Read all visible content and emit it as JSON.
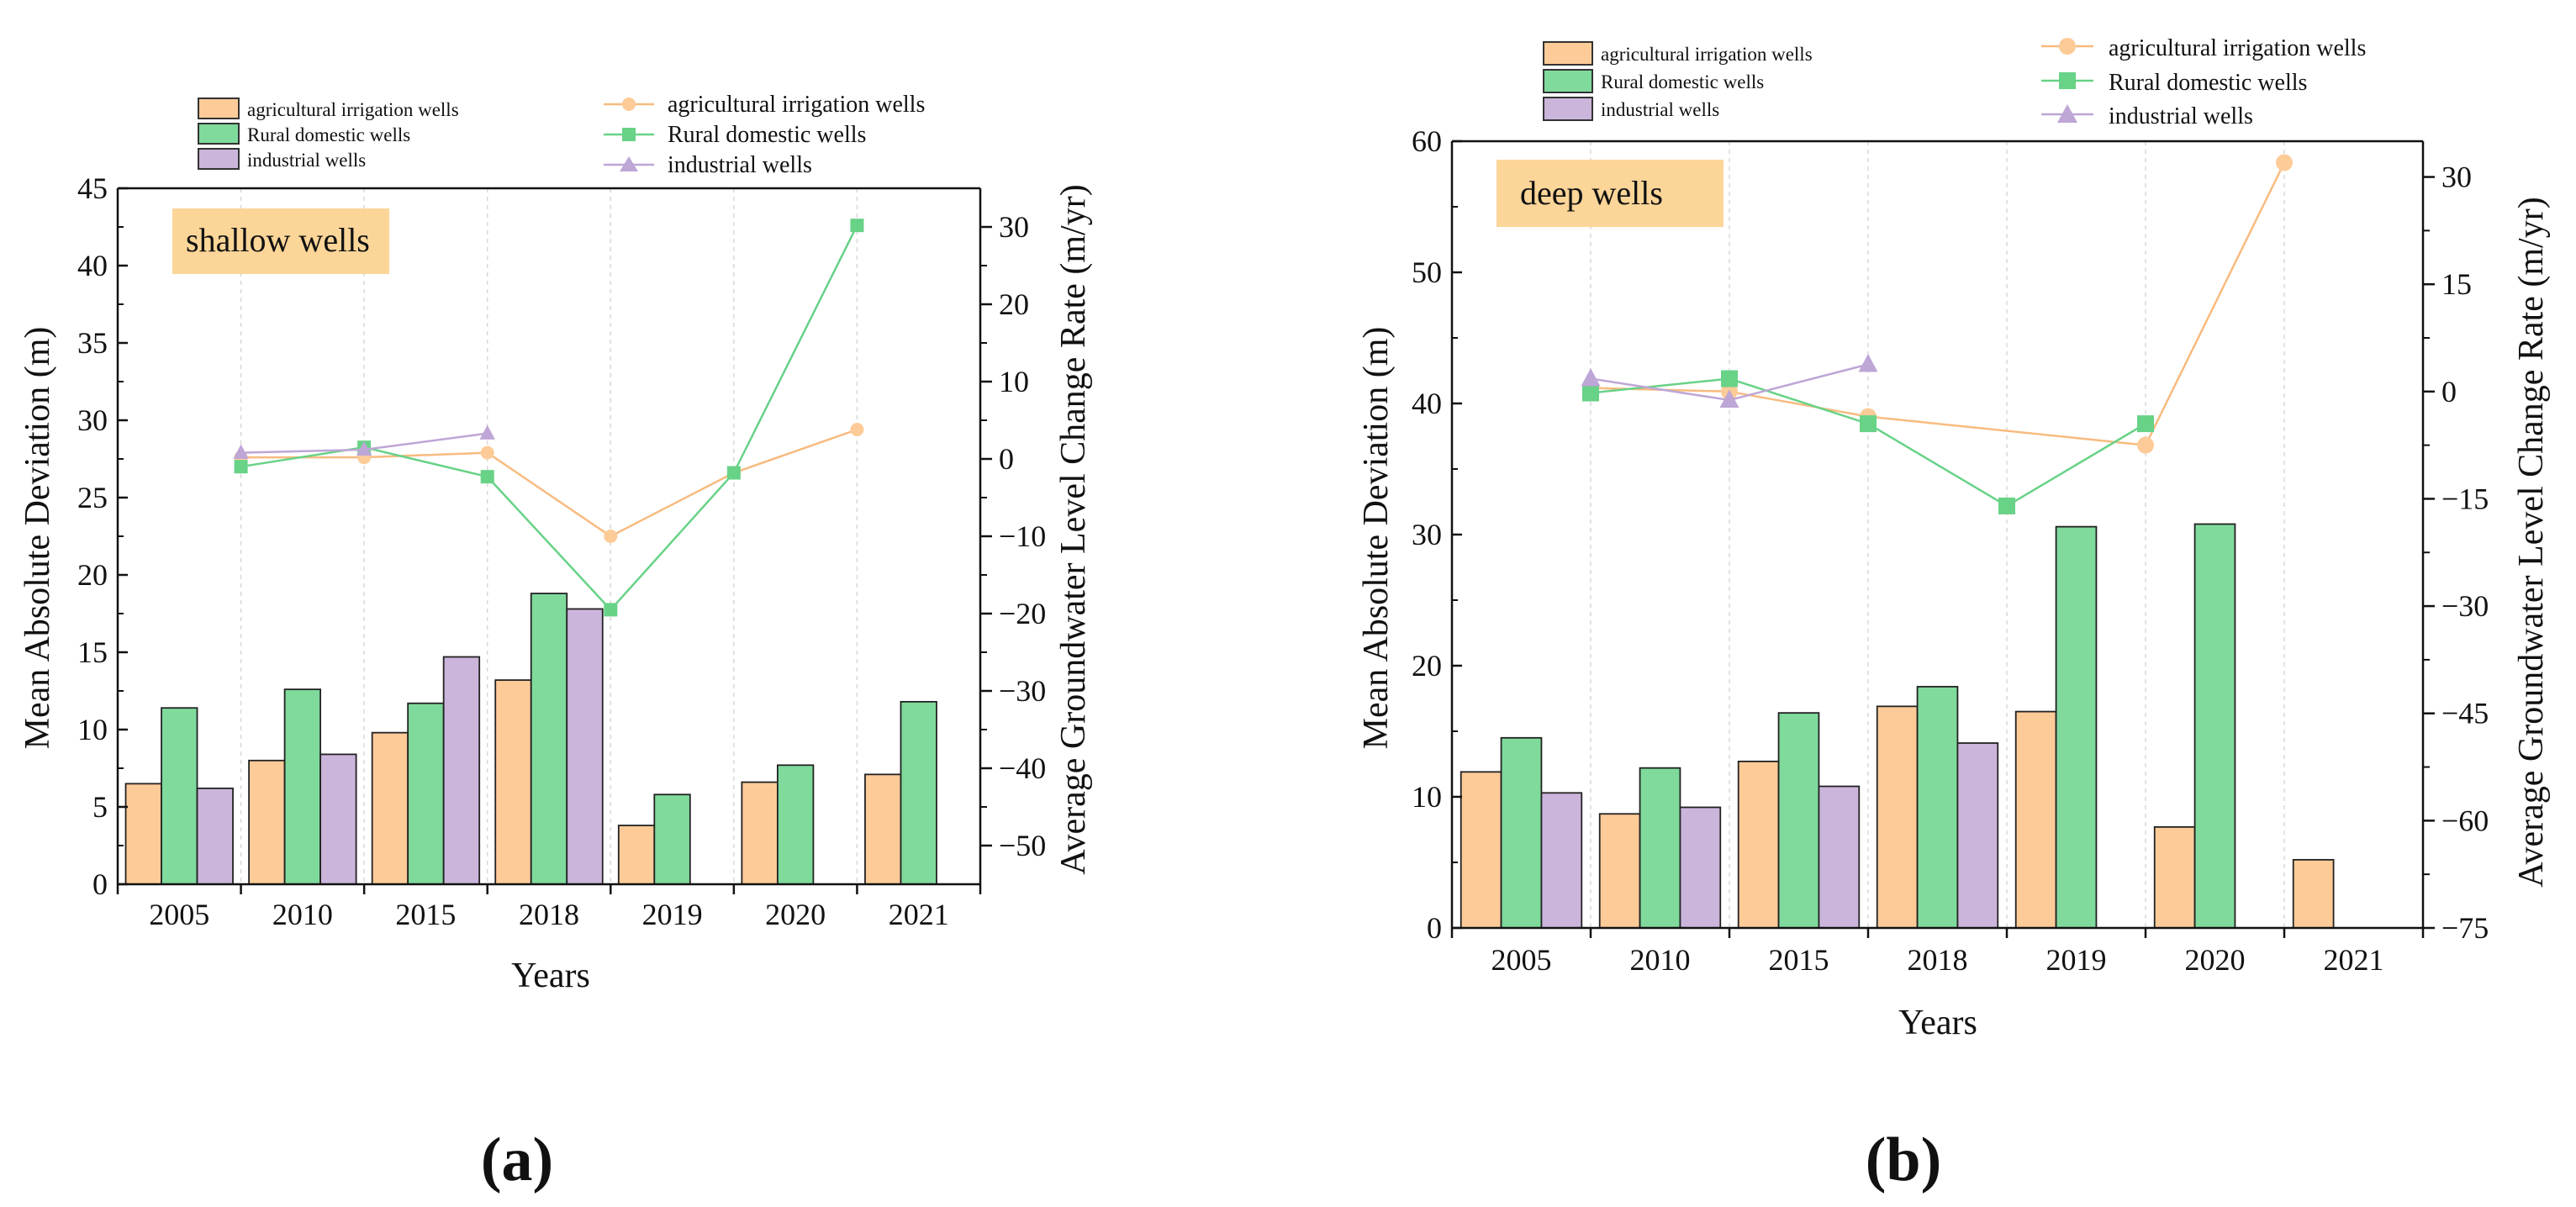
{
  "colors": {
    "agri": "#fdcb98",
    "rural": "#7fda9c",
    "industrial": "#cbb5db",
    "agri_line": "#f8bb7f",
    "rural_line": "#68d287",
    "industrial_line": "#bea6d6",
    "label_box": "#fcd598",
    "axis": "#111111"
  },
  "chart_data": [
    {
      "type": "bar+line",
      "panel_label": "(a)",
      "title": "shallow wells",
      "xlabel": "Years",
      "ylabel": "Mean Absolute Deviation (m)",
      "y2label": "Average Groundwater Level Change Rate (m/yr)",
      "categories": [
        "2005",
        "2010",
        "2015",
        "2018",
        "2019",
        "2020",
        "2021"
      ],
      "ylim": [
        0,
        45
      ],
      "yticks": [
        "0",
        "5",
        "10",
        "15",
        "20",
        "25",
        "30",
        "35",
        "40",
        "45"
      ],
      "y2lim": [
        -55,
        35
      ],
      "y2ticks": [
        "−50",
        "−40",
        "−30",
        "−20",
        "−10",
        "0",
        "10",
        "20",
        "30"
      ],
      "legend_bars": [
        "agricultural irrigation wells",
        "Rural domestic wells",
        "industrial wells"
      ],
      "legend_lines": [
        "agricultural irrigation wells",
        "Rural domestic wells",
        "industrial wells"
      ],
      "bar_series": [
        {
          "name": "agricultural irrigation wells",
          "values": [
            6.5,
            8.0,
            9.8,
            13.2,
            3.8,
            6.6,
            7.1
          ]
        },
        {
          "name": "Rural domestic wells",
          "values": [
            11.4,
            12.6,
            11.7,
            18.8,
            5.8,
            7.7,
            11.8
          ]
        },
        {
          "name": "industrial wells",
          "values": [
            6.2,
            8.4,
            14.7,
            17.8,
            null,
            null,
            null
          ]
        }
      ],
      "line_series": [
        {
          "name": "agricultural irrigation wells",
          "values": [
            0.2,
            0.2,
            0.8,
            -10.0,
            -1.8,
            3.8
          ]
        },
        {
          "name": "Rural domestic wells",
          "values": [
            -1.0,
            1.5,
            -2.3,
            -19.5,
            -1.8,
            30.2
          ]
        },
        {
          "name": "industrial wells",
          "values": [
            0.8,
            1.2,
            3.3,
            null,
            null,
            null
          ]
        }
      ]
    },
    {
      "type": "bar+line",
      "panel_label": "(b)",
      "title": "deep wells",
      "xlabel": "Years",
      "ylabel": "Mean Absolute Deviation (m)",
      "y2label": "Average Groundwater Level Change Rate (m/yr)",
      "categories": [
        "2005",
        "2010",
        "2015",
        "2018",
        "2019",
        "2020",
        "2021"
      ],
      "ylim": [
        0,
        60
      ],
      "yticks": [
        "0",
        "10",
        "20",
        "30",
        "40",
        "50",
        "60"
      ],
      "y2lim": [
        -75,
        35
      ],
      "y2ticks": [
        "−75",
        "−60",
        "−45",
        "−30",
        "−15",
        "0",
        "15",
        "30"
      ],
      "legend_bars": [
        "agricultural irrigation wells",
        "Rural domestic wells",
        "industrial wells"
      ],
      "legend_lines": [
        "agricultural irrigation wells",
        "Rural domestic wells",
        "industrial wells"
      ],
      "bar_series": [
        {
          "name": "agricultural irrigation wells",
          "values": [
            11.9,
            8.7,
            12.7,
            16.9,
            16.5,
            7.7,
            5.2
          ]
        },
        {
          "name": "Rural domestic wells",
          "values": [
            14.5,
            12.2,
            16.4,
            18.4,
            30.6,
            30.8,
            null
          ]
        },
        {
          "name": "industrial wells",
          "values": [
            10.3,
            9.2,
            10.8,
            14.1,
            null,
            null,
            null
          ]
        }
      ],
      "line_series": [
        {
          "name": "agricultural irrigation wells",
          "values": [
            0.5,
            0.0,
            -3.5,
            null,
            -7.5,
            32.0
          ]
        },
        {
          "name": "Rural domestic wells",
          "values": [
            -0.2,
            1.8,
            -4.5,
            -16.0,
            -4.5,
            null
          ]
        },
        {
          "name": "industrial wells",
          "values": [
            1.8,
            -1.2,
            3.8,
            null,
            null,
            null
          ]
        }
      ]
    }
  ]
}
